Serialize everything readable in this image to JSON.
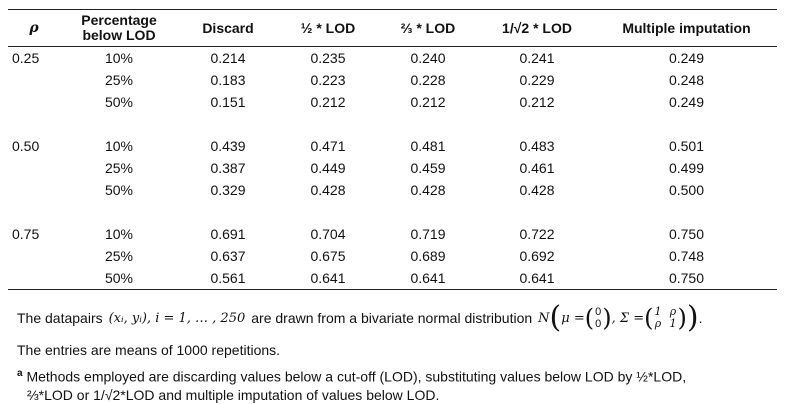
{
  "headers": {
    "rho": "ρ",
    "pct": "Percentage below LOD",
    "discard": "Discard",
    "half": "½ * LOD",
    "twothirds": "⅔ * LOD",
    "rootinv": "1/√2 * LOD",
    "mi": "Multiple imputation"
  },
  "groups": [
    {
      "rho": "0.25",
      "rows": [
        {
          "pct": "10%",
          "discard": "0.214",
          "half": "0.235",
          "twothirds": "0.240",
          "rootinv": "0.241",
          "mi": "0.249"
        },
        {
          "pct": "25%",
          "discard": "0.183",
          "half": "0.223",
          "twothirds": "0.228",
          "rootinv": "0.229",
          "mi": "0.248"
        },
        {
          "pct": "50%",
          "discard": "0.151",
          "half": "0.212",
          "twothirds": "0.212",
          "rootinv": "0.212",
          "mi": "0.249"
        }
      ]
    },
    {
      "rho": "0.50",
      "rows": [
        {
          "pct": "10%",
          "discard": "0.439",
          "half": "0.471",
          "twothirds": "0.481",
          "rootinv": "0.483",
          "mi": "0.501"
        },
        {
          "pct": "25%",
          "discard": "0.387",
          "half": "0.449",
          "twothirds": "0.459",
          "rootinv": "0.461",
          "mi": "0.499"
        },
        {
          "pct": "50%",
          "discard": "0.329",
          "half": "0.428",
          "twothirds": "0.428",
          "rootinv": "0.428",
          "mi": "0.500"
        }
      ]
    },
    {
      "rho": "0.75",
      "rows": [
        {
          "pct": "10%",
          "discard": "0.691",
          "half": "0.704",
          "twothirds": "0.719",
          "rootinv": "0.722",
          "mi": "0.750"
        },
        {
          "pct": "25%",
          "discard": "0.637",
          "half": "0.675",
          "twothirds": "0.689",
          "rootinv": "0.692",
          "mi": "0.748"
        },
        {
          "pct": "50%",
          "discard": "0.561",
          "half": "0.641",
          "twothirds": "0.641",
          "rootinv": "0.641",
          "mi": "0.750"
        }
      ]
    }
  ],
  "notes": {
    "formula_prefix": "The datapairs",
    "formula_pair": "(xᵢ, yᵢ), i = 1, … , 250",
    "formula_middle": "are drawn from a bivariate normal distribution",
    "formula_N": "N",
    "formula_mu": "μ =",
    "formula_mu_top": "0",
    "formula_mu_bottom": "0",
    "formula_sigma": ", Σ =",
    "formula_sigma_11": "1",
    "formula_sigma_12": "ρ",
    "formula_sigma_21": "ρ",
    "formula_sigma_22": "1",
    "formula_end": ".",
    "means": "The entries are means of 1000 repetitions.",
    "footnote_marker": "a",
    "footnote_line1": "Methods employed are discarding values below a cut-off (LOD), substituting values below LOD by ½*LOD,",
    "footnote_line2": "⅔*LOD or 1/√2*LOD and multiple imputation of values below LOD."
  }
}
